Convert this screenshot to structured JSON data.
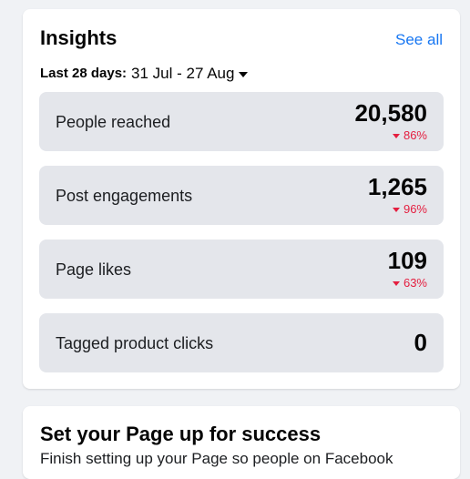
{
  "insights": {
    "title": "Insights",
    "see_all": "See all",
    "date_label": "Last 28 days:",
    "date_range": "31 Jul - 27 Aug",
    "metrics": [
      {
        "label": "People reached",
        "value": "20,580",
        "change": "86%"
      },
      {
        "label": "Post engagements",
        "value": "1,265",
        "change": "96%"
      },
      {
        "label": "Page likes",
        "value": "109",
        "change": "63%"
      },
      {
        "label": "Tagged product clicks",
        "value": "0"
      }
    ]
  },
  "setup": {
    "title": "Set your Page up for success",
    "subtitle": "Finish setting up your Page so people on Facebook"
  },
  "colors": {
    "link": "#1877f2",
    "decrease": "#e41e3f",
    "metric_bg": "#e4e6eb"
  }
}
